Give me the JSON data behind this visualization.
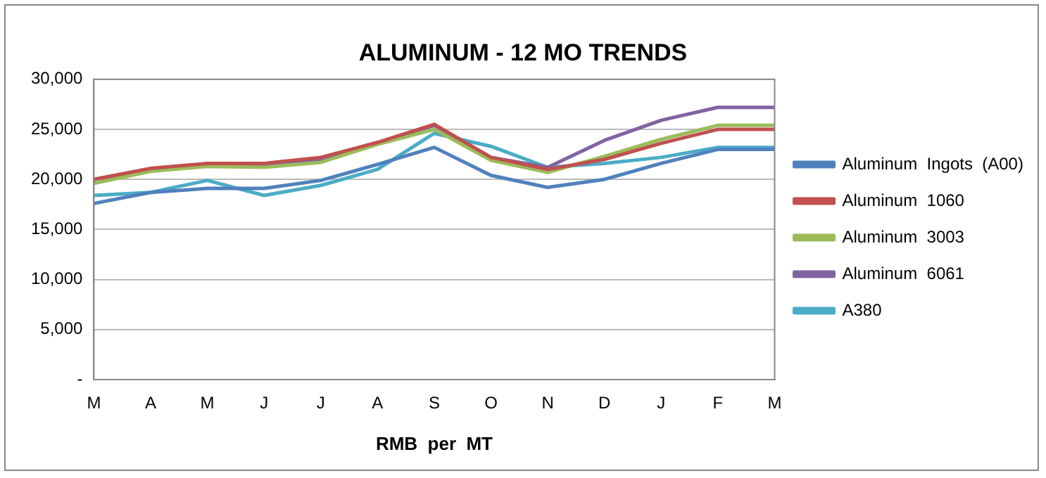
{
  "chart_data": {
    "type": "line",
    "title": "ALUMINUM - 12 MO TRENDS",
    "xlabel": "RMB  per  MT",
    "categories": [
      "M",
      "A",
      "M",
      "J",
      "J",
      "A",
      "S",
      "O",
      "N",
      "D",
      "J",
      "F",
      "M"
    ],
    "series": [
      {
        "name": "Aluminum  Ingots  (A00)",
        "color": "#4f81bd",
        "values": [
          17600,
          18700,
          19100,
          19100,
          19900,
          21500,
          23200,
          20400,
          19200,
          20000,
          21600,
          23000,
          23000
        ]
      },
      {
        "name": "Aluminum  1060",
        "color": "#c0504d",
        "values": [
          20000,
          21100,
          21600,
          21600,
          22200,
          23700,
          25500,
          22200,
          21000,
          22000,
          23600,
          25000,
          25000
        ]
      },
      {
        "name": "Aluminum  3003",
        "color": "#9bbb59",
        "values": [
          19600,
          20800,
          21300,
          21200,
          21700,
          23500,
          25000,
          21900,
          20700,
          22300,
          24000,
          25400,
          25400
        ]
      },
      {
        "name": "Aluminum  6061",
        "color": "#8064a2",
        "values": [
          20000,
          21000,
          21500,
          21500,
          22000,
          23600,
          25400,
          22200,
          21200,
          23900,
          25900,
          27200,
          27200
        ]
      },
      {
        "name": "A380",
        "color": "#4bacc6",
        "values": [
          18400,
          18700,
          19900,
          18400,
          19400,
          21000,
          24600,
          23300,
          21200,
          21600,
          22200,
          23200,
          23200
        ]
      }
    ],
    "ylim": [
      0,
      30000
    ],
    "yticks": [
      {
        "value": 0,
        "label": "-"
      },
      {
        "value": 5000,
        "label": "5,000"
      },
      {
        "value": 10000,
        "label": "10,000"
      },
      {
        "value": 15000,
        "label": "15,000"
      },
      {
        "value": 20000,
        "label": "20,000"
      },
      {
        "value": 25000,
        "label": "25,000"
      },
      {
        "value": 30000,
        "label": "30,000"
      }
    ],
    "grid": "y",
    "legend": "right",
    "marker": "none",
    "line_style": "solid"
  }
}
